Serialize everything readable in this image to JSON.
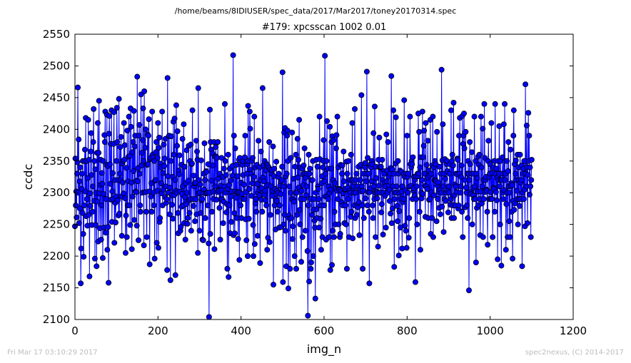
{
  "header": {
    "file_path": "/home/beams/8IDIUSER/spec_data/2017/Mar2017/toney20170314.spec",
    "scan_title": "#179: xpcsscan 1002 0.01"
  },
  "footer": {
    "timestamp": "Fri Mar 17 03:10:29 2017",
    "credit": "spec2nexus, (C) 2014-2017"
  },
  "colors": {
    "series": "#0000ff",
    "marker_edge": "#000000"
  },
  "chart_data": {
    "type": "line",
    "title": "#179: xpcsscan 1002 0.01",
    "xlabel": "img_n",
    "ylabel": "ccdc",
    "xlim": [
      0,
      1200
    ],
    "ylim": [
      2100,
      2550
    ],
    "x_ticks": [
      0,
      200,
      400,
      600,
      800,
      1000,
      1200
    ],
    "y_ticks": [
      2100,
      2150,
      2200,
      2250,
      2300,
      2350,
      2400,
      2450,
      2500,
      2550
    ],
    "grid": false,
    "legend": "none",
    "marker": "circle",
    "series": [
      {
        "x_start": 0,
        "x_step": 1,
        "values": [
          2247,
          2354,
          2280,
          2302,
          2261,
          2330,
          2348,
          2466,
          2300,
          2384,
          2252,
          2318,
          2275,
          2340,
          2157,
          2212,
          2306,
          2330,
          2268,
          2350,
          2235,
          2199,
          2280,
          2350,
          2368,
          2302,
          2418,
          2263,
          2350,
          2290,
          2248,
          2323,
          2415,
          2265,
          2352,
          2168,
          2299,
          2279,
          2365,
          2394,
          2328,
          2249,
          2270,
          2310,
          2380,
          2432,
          2287,
          2350,
          2196,
          2337,
          2249,
          2300,
          2184,
          2363,
          2286,
          2410,
          2223,
          2363,
          2445,
          2299,
          2244,
          2312,
          2352,
          2226,
          2280,
          2331,
          2314,
          2197,
          2350,
          2298,
          2245,
          2391,
          2380,
          2428,
          2237,
          2290,
          2344,
          2423,
          2210,
          2342,
          2246,
          2158,
          2393,
          2421,
          2345,
          2314,
          2377,
          2289,
          2430,
          2254,
          2302,
          2331,
          2290,
          2377,
          2427,
          2221,
          2320,
          2284,
          2253,
          2294,
          2350,
          2434,
          2380,
          2288,
          2320,
          2264,
          2448,
          2267,
          2330,
          2372,
          2320,
          2388,
          2294,
          2232,
          2346,
          2316,
          2350,
          2299,
          2410,
          2352,
          2375,
          2291,
          2205,
          2264,
          2339,
          2230,
          2398,
          2280,
          2318,
          2357,
          2420,
          2280,
          2358,
          2249,
          2433,
          2404,
          2316,
          2211,
          2364,
          2294,
          2380,
          2334,
          2429,
          2257,
          2373,
          2390,
          2302,
          2319,
          2301,
          2248,
          2483,
          2318,
          2339,
          2225,
          2390,
          2407,
          2330,
          2280,
          2270,
          2455,
          2343,
          2363,
          2300,
          2383,
          2433,
          2350,
          2217,
          2460,
          2301,
          2371,
          2400,
          2301,
          2270,
          2230,
          2344,
          2392,
          2345,
          2390,
          2416,
          2302,
          2187,
          2353,
          2355,
          2294,
          2315,
          2270,
          2428,
          2360,
          2356,
          2300,
          2280,
          2350,
          2196,
          2319,
          2320,
          2364,
          2380,
          2221,
          2303,
          2355,
          2410,
          2213,
          2371,
          2387,
          2254,
          2260,
          2346,
          2340,
          2315,
          2299,
          2428,
          2280,
          2331,
          2305,
          2376,
          2342,
          2354,
          2293,
          2385,
          2310,
          2284,
          2290,
          2178,
          2481,
          2326,
          2300,
          2389,
          2390,
          2266,
          2308,
          2162,
          2350,
          2389,
          2296,
          2281,
          2325,
          2259,
          2412,
          2360,
          2296,
          2417,
          2320,
          2170,
          2303,
          2438,
          2300,
          2374,
          2397,
          2268,
          2236,
          2335,
          2329,
          2359,
          2302,
          2240,
          2246,
          2344,
          2278,
          2298,
          2385,
          2310,
          2280,
          2408,
          2252,
          2341,
          2293,
          2226,
          2315,
          2282,
          2367,
          2300,
          2251,
          2260,
          2319,
          2374,
          2288,
          2268,
          2350,
          2290,
          2376,
          2240,
          2345,
          2346,
          2430,
          2290,
          2279,
          2327,
          2310,
          2315,
          2255,
          2316,
          2290,
          2382,
          2266,
          2365,
          2352,
          2205,
          2465,
          2299,
          2320,
          2240,
          2300,
          2313,
          2268,
          2351,
          2288,
          2290,
          2226,
          2300,
          2225,
          2330,
          2305,
          2378,
          2320,
          2260,
          2299,
          2334,
          2333,
          2300,
          2300,
          2280,
          2345,
          2220,
          2104,
          2300,
          2431,
          2235,
          2380,
          2368,
          2319,
          2270,
          2362,
          2343,
          2302,
          2290,
          2380,
          2211,
          2357,
          2310,
          2372,
          2357,
          2289,
          2355,
          2301,
          2380,
          2322,
          2304,
          2303,
          2276,
          2330,
          2226,
          2311,
          2290,
          2355,
          2304,
          2289,
          2325,
          2252,
          2286,
          2338,
          2310,
          2440,
          2350,
          2300,
          2328,
          2269,
          2282,
          2180,
          2306,
          2360,
          2167,
          2312,
          2280,
          2338,
          2236,
          2319,
          2294,
          2254,
          2302,
          2342,
          2327,
          2517,
          2233,
          2390,
          2268,
          2236,
          2370,
          2302,
          2292,
          2344,
          2260,
          2326,
          2301,
          2227,
          2301,
          2352,
          2194,
          2355,
          2300,
          2280,
          2316,
          2260,
          2298,
          2344,
          2350,
          2328,
          2290,
          2313,
          2290,
          2356,
          2390,
          2258,
          2301,
          2225,
          2330,
          2345,
          2200,
          2437,
          2350,
          2259,
          2306,
          2428,
          2401,
          2336,
          2330,
          2295,
          2350,
          2315,
          2355,
          2249,
          2200,
          2325,
          2420,
          2219,
          2340,
          2283,
          2290,
          2270,
          2344,
          2314,
          2232,
          2300,
          2382,
          2305,
          2296,
          2340,
          2189,
          2320,
          2365,
          2289,
          2307,
          2270,
          2465,
          2324,
          2343,
          2318,
          2297,
          2350,
          2303,
          2288,
          2335,
          2280,
          2345,
          2210,
          2343,
          2229,
          2312,
          2340,
          2380,
          2222,
          2337,
          2265,
          2310,
          2330,
          2336,
          2295,
          2303,
          2373,
          2155,
          2326,
          2338,
          2280,
          2306,
          2242,
          2290,
          2349,
          2287,
          2303,
          2270,
          2300,
          2325,
          2330,
          2245,
          2280,
          2311,
          2298,
          2318,
          2246,
          2320,
          2341,
          2490,
          2159,
          2310,
          2250,
          2395,
          2265,
          2402,
          2240,
          2326,
          2184,
          2330,
          2390,
          2398,
          2350,
          2149,
          2264,
          2310,
          2259,
          2180,
          2300,
          2355,
          2260,
          2290,
          2395,
          2227,
          2247,
          2289,
          2322,
          2286,
          2200,
          2341,
          2300,
          2360,
          2180,
          2300,
          2265,
          2385,
          2324,
          2352,
          2308,
          2415,
          2273,
          2250,
          2340,
          2290,
          2191,
          2303,
          2338,
          2230,
          2329,
          2312,
          2343,
          2290,
          2370,
          2330,
          2240,
          2324,
          2296,
          2310,
          2330,
          2208,
          2106,
          2280,
          2360,
          2160,
          2330,
          2338,
          2290,
          2180,
          2190,
          2320,
          2265,
          2320,
          2350,
          2200,
          2273,
          2290,
          2256,
          2245,
          2133,
          2300,
          2352,
          2274,
          2260,
          2341,
          2310,
          2306,
          2290,
          2245,
          2420,
          2353,
          2280,
          2259,
          2210,
          2315,
          2326,
          2230,
          2340,
          2350,
          2383,
          2280,
          2318,
          2516,
          2294,
          2330,
          2226,
          2350,
          2413,
          2294,
          2338,
          2290,
          2310,
          2230,
          2300,
          2404,
          2178,
          2305,
          2338,
          2380,
          2186,
          2389,
          2240,
          2320,
          2383,
          2230,
          2270,
          2315,
          2250,
          2306,
          2370,
          2391,
          2303,
          2420,
          2290,
          2340,
          2250,
          2306,
          2305,
          2230,
          2235,
          2344,
          2303,
          2285,
          2330,
          2343,
          2280,
          2299,
          2365,
          2318,
          2252,
          2305,
          2306,
          2280,
          2250,
          2349,
          2180,
          2330,
          2308,
          2290,
          2350,
          2230,
          2303,
          2320,
          2300,
          2262,
          2360,
          2270,
          2320,
          2410,
          2228,
          2320,
          2310,
          2300,
          2280,
          2432,
          2260,
          2300,
          2320,
          2330,
          2265,
          2281,
          2310,
          2277,
          2341,
          2285,
          2233,
          2305,
          2320,
          2344,
          2302,
          2454,
          2310,
          2280,
          2180,
          2303,
          2330,
          2260,
          2345,
          2340,
          2347,
          2291,
          2318,
          2330,
          2491,
          2280,
          2355,
          2301,
          2330,
          2270,
          2157,
          2301,
          2344,
          2307,
          2340,
          2318,
          2350,
          2345,
          2280,
          2260,
          2394,
          2310,
          2290,
          2436,
          2300,
          2230,
          2341,
          2323,
          2302,
          2291,
          2300,
          2215,
          2352,
          2311,
          2387,
          2340,
          2300,
          2340,
          2341,
          2269,
          2282,
          2352,
          2320,
          2234,
          2300,
          2334,
          2330,
          2316,
          2295,
          2310,
          2245,
          2392,
          2318,
          2335,
          2300,
          2380,
          2325,
          2311,
          2305,
          2287,
          2330,
          2267,
          2339,
          2484,
          2252,
          2337,
          2275,
          2310,
          2430,
          2330,
          2183,
          2290,
          2300,
          2346,
          2419,
          2300,
          2310,
          2279,
          2255,
          2350,
          2330,
          2201,
          2271,
          2300,
          2335,
          2245,
          2290,
          2333,
          2302,
          2212,
          2310,
          2285,
          2329,
          2290,
          2446,
          2325,
          2248,
          2304,
          2240,
          2330,
          2213,
          2390,
          2325,
          2300,
          2330,
          2229,
          2260,
          2310,
          2420,
          2345,
          2311,
          2340,
          2350,
          2345,
          2290,
          2356,
          2303,
          2307,
          2325,
          2296,
          2321,
          2159,
          2326,
          2290,
          2310,
          2250,
          2330,
          2326,
          2425,
          2330,
          2396,
          2270,
          2340,
          2210,
          2356,
          2300,
          2291,
          2320,
          2428,
          2298,
          2356,
          2374,
          2398,
          2330,
          2311,
          2262,
          2410,
          2310,
          2344,
          2306,
          2324,
          2382,
          2260,
          2335,
          2289,
          2327,
          2290,
          2415,
          2235,
          2330,
          2301,
          2260,
          2343,
          2420,
          2230,
          2340,
          2296,
          2320,
          2350,
          2320,
          2345,
          2318,
          2255,
          2396,
          2311,
          2290,
          2316,
          2302,
          2276,
          2341,
          2305,
          2266,
          2330,
          2300,
          2494,
          2278,
          2351,
          2408,
          2310,
          2238,
          2330,
          2290,
          2353,
          2322,
          2287,
          2300,
          2345,
          2350,
          2334,
          2303,
          2269,
          2310,
          2300,
          2330,
          2345,
          2281,
          2290,
          2430,
          2260,
          2350,
          2360,
          2280,
          2343,
          2442,
          2260,
          2296,
          2313,
          2280,
          2310,
          2330,
          2301,
          2329,
          2354,
          2352,
          2275,
          2280,
          2390,
          2330,
          2418,
          2300,
          2310,
          2325,
          2343,
          2270,
          2421,
          2230,
          2377,
          2390,
          2425,
          2370,
          2320,
          2277,
          2396,
          2308,
          2300,
          2280,
          2330,
          2260,
          2350,
          2330,
          2146,
          2320,
          2380,
          2345,
          2301,
          2298,
          2330,
          2364,
          2250,
          2308,
          2296,
          2330,
          2290,
          2420,
          2310,
          2290,
          2350,
          2190,
          2330,
          2276,
          2323,
          2302,
          2357,
          2280,
          2344,
          2360,
          2290,
          2233,
          2302,
          2420,
          2340,
          2283,
          2310,
          2401,
          2230,
          2320,
          2290,
          2440,
          2355,
          2301,
          2320,
          2325,
          2305,
          2303,
          2270,
          2218,
          2350,
          2382,
          2325,
          2290,
          2330,
          2345,
          2301,
          2290,
          2410,
          2290,
          2331,
          2230,
          2340,
          2308,
          2306,
          2350,
          2270,
          2440,
          2330,
          2301,
          2338,
          2288,
          2324,
          2195,
          2350,
          2320,
          2330,
          2405,
          2310,
          2250,
          2350,
          2320,
          2185,
          2320,
          2330,
          2356,
          2300,
          2290,
          2408,
          2304,
          2440,
          2320,
          2330,
          2210,
          2282,
          2350,
          2300,
          2230,
          2334,
          2380,
          2310,
          2255,
          2300,
          2230,
          2368,
          2310,
          2315,
          2270,
          2312,
          2196,
          2287,
          2390,
          2430,
          2273,
          2345,
          2283,
          2330,
          2351,
          2320,
          2303,
          2290,
          2360,
          2250,
          2340,
          2320,
          2290,
          2279,
          2360,
          2316,
          2290,
          2320,
          2343,
          2184,
          2300,
          2330,
          2338,
          2290,
          2350,
          2305,
          2247,
          2471,
          2330,
          2310,
          2406,
          2340,
          2252,
          2328,
          2426,
          2350,
          2390,
          2297,
          2340,
          2310,
          2230,
          2320,
          2352
        ]
      }
    ]
  }
}
